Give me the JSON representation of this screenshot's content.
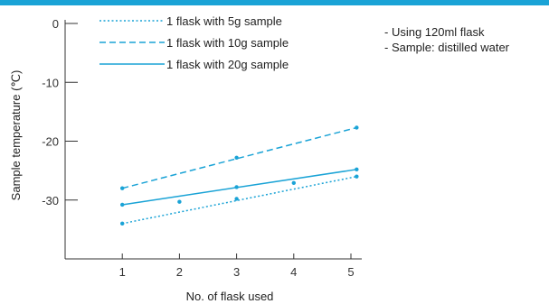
{
  "notes": [
    "- Using 120ml flask",
    "- Sample: distilled water"
  ],
  "colors": {
    "accent": "#1aa3d6",
    "axis": "#333333"
  },
  "chart_data": {
    "type": "line",
    "title": "",
    "xlabel": "No. of flask used",
    "ylabel": "Sample temperature (℃)",
    "xlim": [
      0,
      5.3
    ],
    "ylim": [
      -40,
      0
    ],
    "x_ticks": [
      1,
      2,
      3,
      4,
      5
    ],
    "y_ticks": [
      0,
      -10,
      -20,
      -30
    ],
    "grid": false,
    "legend": "top-left",
    "series": [
      {
        "name": "1 flask with 5g sample",
        "style": "dotted",
        "color": "#1aa3d6",
        "line": [
          [
            1,
            -34
          ],
          [
            5.1,
            -26
          ]
        ],
        "points": [
          [
            1,
            -34
          ],
          [
            2,
            -30.3
          ],
          [
            3,
            -29.8
          ],
          [
            4,
            -27.1
          ],
          [
            5.1,
            -26
          ]
        ]
      },
      {
        "name": "1 flask with 10g sample",
        "style": "dashed",
        "color": "#1aa3d6",
        "line": [
          [
            1,
            -28
          ],
          [
            5.1,
            -17.7
          ]
        ],
        "points": [
          [
            1,
            -28
          ],
          [
            3,
            -22.8
          ],
          [
            5.1,
            -17.7
          ]
        ]
      },
      {
        "name": "1 flask with 20g sample",
        "style": "solid",
        "color": "#1aa3d6",
        "line": [
          [
            1,
            -30.8
          ],
          [
            5.1,
            -24.8
          ]
        ],
        "points": [
          [
            1,
            -30.8
          ],
          [
            3,
            -27.8
          ],
          [
            5.1,
            -24.8
          ]
        ]
      }
    ]
  }
}
